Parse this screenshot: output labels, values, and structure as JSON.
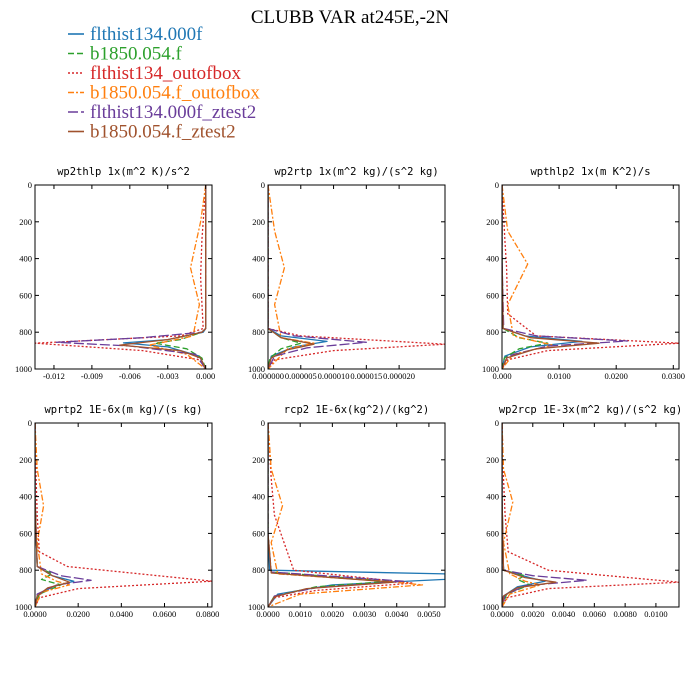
{
  "title": "CLUBB VAR at245E,-2N",
  "legend": [
    {
      "label": "flthist134.000f",
      "color": "#1f77b4",
      "dash": "solid"
    },
    {
      "label": "b1850.054.f",
      "color": "#2ca02c",
      "dash": "dashed"
    },
    {
      "label": "flthist134_outofbox",
      "color": "#d62728",
      "dash": "dotted"
    },
    {
      "label": "b1850.054.f_outofbox",
      "color": "#ff7f0e",
      "dash": "dashdot"
    },
    {
      "label": "flthist134.000f_ztest2",
      "color": "#6a3d9a",
      "dash": "longdash"
    },
    {
      "label": "b1850.054.f_ztest2",
      "color": "#a0522d",
      "dash": "solid"
    }
  ],
  "chart_data": [
    {
      "type": "line",
      "title": "wp2thlp  1x(m^2 K)/s^2",
      "xlim": [
        -0.0135,
        0.0005
      ],
      "xticks": [
        -0.012,
        -0.009,
        -0.006,
        -0.003,
        0.0
      ],
      "xtick_labels": [
        "-0.012",
        "-0.009",
        "-0.006",
        "-0.003",
        "0.000"
      ],
      "ylim": [
        0,
        1000
      ],
      "yticks": [
        0,
        200,
        400,
        600,
        800,
        1000
      ],
      "series": [
        {
          "name": "flthist134.000f",
          "x": [
            0,
            0,
            0,
            -0.0002,
            -0.003,
            -0.0065,
            -0.003,
            -0.0005,
            0
          ],
          "y": [
            0,
            400,
            780,
            800,
            840,
            858,
            880,
            930,
            1000
          ]
        },
        {
          "name": "b1850.054.f",
          "x": [
            0,
            0,
            0,
            -0.0003,
            -0.002,
            -0.004,
            -0.0015,
            -0.0003,
            0
          ],
          "y": [
            0,
            400,
            780,
            800,
            840,
            860,
            890,
            940,
            1000
          ]
        },
        {
          "name": "flthist134_outofbox",
          "x": [
            0,
            -0.0003,
            -0.0004,
            -0.0002,
            -0.002,
            -0.0135,
            -0.005,
            -0.0005,
            0
          ],
          "y": [
            0,
            300,
            500,
            780,
            820,
            860,
            900,
            950,
            1000
          ]
        },
        {
          "name": "b1850.054.f_outofbox",
          "x": [
            0,
            -0.0004,
            -0.0012,
            -0.0005,
            -0.001,
            -0.003,
            -0.0045,
            -0.0015,
            0
          ],
          "y": [
            0,
            200,
            450,
            650,
            820,
            850,
            870,
            920,
            1000
          ]
        },
        {
          "name": "flthist134.000f_ztest2",
          "x": [
            0,
            0,
            0,
            -0.0003,
            -0.005,
            -0.0118,
            -0.006,
            -0.0008,
            0
          ],
          "y": [
            0,
            400,
            780,
            800,
            830,
            855,
            875,
            920,
            1000
          ]
        },
        {
          "name": "b1850.054.f_ztest2",
          "x": [
            0,
            0,
            0,
            -0.0003,
            -0.003,
            -0.0068,
            -0.002,
            -0.0004,
            0
          ],
          "y": [
            0,
            400,
            780,
            800,
            840,
            870,
            900,
            940,
            1000
          ]
        }
      ]
    },
    {
      "type": "line",
      "title": "wp2rtp  1x(m^2 kg)/(s^2 kg)",
      "xlim": [
        0,
        2.7e-05
      ],
      "xticks": [
        0,
        5e-06,
        1e-05,
        1.5e-05,
        2e-05
      ],
      "xtick_labels": [
        "0.000000",
        "0.000005",
        "0.000010",
        "0.000015",
        "0.000020"
      ],
      "ylim": [
        0,
        1000
      ],
      "yticks": [
        0,
        200,
        400,
        600,
        800,
        1000
      ],
      "series": [
        {
          "name": "flthist134.000f",
          "x": [
            0,
            0,
            0,
            2e-06,
            9e-06,
            4e-06,
            5e-07,
            0
          ],
          "y": [
            0,
            400,
            780,
            820,
            850,
            880,
            930,
            1000
          ]
        },
        {
          "name": "b1850.054.f",
          "x": [
            0,
            0,
            0,
            2e-06,
            5e-06,
            2e-06,
            3e-07,
            0
          ],
          "y": [
            0,
            400,
            780,
            830,
            860,
            890,
            940,
            1000
          ]
        },
        {
          "name": "flthist134_outofbox",
          "x": [
            0,
            0,
            0,
            5e-06,
            2.7e-05,
            1e-05,
            1e-06,
            0
          ],
          "y": [
            0,
            400,
            780,
            820,
            865,
            900,
            950,
            1000
          ]
        },
        {
          "name": "b1850.054.f_outofbox",
          "x": [
            0,
            1e-06,
            2.5e-06,
            1e-06,
            2e-06,
            7e-06,
            3e-06,
            0
          ],
          "y": [
            0,
            250,
            450,
            650,
            830,
            860,
            890,
            1000
          ]
        },
        {
          "name": "flthist134.000f_ztest2",
          "x": [
            0,
            0,
            0,
            4e-06,
            1.5e-05,
            6e-06,
            1e-06,
            0
          ],
          "y": [
            0,
            400,
            780,
            820,
            855,
            885,
            930,
            1000
          ]
        },
        {
          "name": "b1850.054.f_ztest2",
          "x": [
            0,
            0,
            0,
            2e-06,
            7e-06,
            3e-06,
            5e-07,
            0
          ],
          "y": [
            0,
            400,
            780,
            830,
            865,
            895,
            940,
            1000
          ]
        }
      ]
    },
    {
      "type": "line",
      "title": "wpthlp2  1x(m K^2)/s",
      "xlim": [
        0,
        0.031
      ],
      "xticks": [
        0,
        0.01,
        0.02,
        0.03
      ],
      "xtick_labels": [
        "0.000",
        "0.0100",
        "0.0200",
        "0.0300"
      ],
      "ylim": [
        0,
        1000
      ],
      "yticks": [
        0,
        200,
        400,
        600,
        800,
        1000
      ],
      "series": [
        {
          "name": "flthist134.000f",
          "x": [
            0,
            0,
            0.0002,
            0.004,
            0.014,
            0.005,
            0.0005,
            0
          ],
          "y": [
            0,
            400,
            780,
            820,
            850,
            880,
            930,
            1000
          ]
        },
        {
          "name": "b1850.054.f",
          "x": [
            0,
            0,
            0.0002,
            0.003,
            0.008,
            0.003,
            0.0004,
            0
          ],
          "y": [
            0,
            400,
            780,
            830,
            860,
            890,
            940,
            1000
          ]
        },
        {
          "name": "flthist134_outofbox",
          "x": [
            0,
            0.0005,
            0.0008,
            0.001,
            0.006,
            0.031,
            0.008,
            0.001,
            0
          ],
          "y": [
            0,
            300,
            450,
            700,
            820,
            860,
            900,
            950,
            1000
          ]
        },
        {
          "name": "b1850.054.f_outofbox",
          "x": [
            0,
            0.001,
            0.0045,
            0.001,
            0.002,
            0.006,
            0.009,
            0.002,
            0
          ],
          "y": [
            0,
            250,
            430,
            650,
            820,
            850,
            870,
            920,
            1000
          ]
        },
        {
          "name": "flthist134.000f_ztest2",
          "x": [
            0,
            0,
            0.0003,
            0.006,
            0.022,
            0.008,
            0.001,
            0
          ],
          "y": [
            0,
            400,
            780,
            820,
            848,
            875,
            930,
            1000
          ]
        },
        {
          "name": "b1850.054.f_ztest2",
          "x": [
            0,
            0,
            0.0002,
            0.005,
            0.017,
            0.006,
            0.0008,
            0
          ],
          "y": [
            0,
            400,
            780,
            830,
            860,
            890,
            940,
            1000
          ]
        }
      ]
    },
    {
      "type": "line",
      "title": "wprtp2  1E-6x(m kg)/(s kg)",
      "xlim": [
        0,
        0.082
      ],
      "xticks": [
        0,
        0.02,
        0.04,
        0.06,
        0.08
      ],
      "xtick_labels": [
        "0.0000",
        "0.0200",
        "0.0400",
        "0.0600",
        "0.0800"
      ],
      "ylim": [
        0,
        1000
      ],
      "yticks": [
        0,
        200,
        400,
        600,
        800,
        1000
      ],
      "series": [
        {
          "name": "flthist134.000f",
          "x": [
            0,
            0,
            0.001,
            0.008,
            0.018,
            0.008,
            0.001,
            0
          ],
          "y": [
            0,
            400,
            780,
            830,
            860,
            890,
            940,
            1000
          ]
        },
        {
          "name": "b1850.054.f",
          "x": [
            0,
            0,
            0.001,
            0.008,
            0.003,
            0.012,
            0.002,
            0
          ],
          "y": [
            0,
            400,
            780,
            820,
            850,
            880,
            930,
            1000
          ]
        },
        {
          "name": "flthist134_outofbox",
          "x": [
            0,
            0.0005,
            0.001,
            0.002,
            0.015,
            0.082,
            0.02,
            0.002,
            0
          ],
          "y": [
            0,
            300,
            500,
            700,
            780,
            860,
            900,
            950,
            1000
          ]
        },
        {
          "name": "b1850.054.f_outofbox",
          "x": [
            0,
            0.001,
            0.004,
            0.001,
            0.003,
            0.01,
            0.016,
            0.003,
            0
          ],
          "y": [
            0,
            250,
            450,
            650,
            820,
            860,
            880,
            920,
            1000
          ]
        },
        {
          "name": "flthist134.000f_ztest2",
          "x": [
            0,
            0,
            0.001,
            0.012,
            0.026,
            0.01,
            0.001,
            0
          ],
          "y": [
            0,
            400,
            780,
            830,
            855,
            880,
            930,
            1000
          ]
        },
        {
          "name": "b1850.054.f_ztest2",
          "x": [
            0,
            0,
            0.001,
            0.008,
            0.016,
            0.006,
            0.001,
            0
          ],
          "y": [
            0,
            400,
            780,
            830,
            865,
            895,
            940,
            1000
          ]
        }
      ]
    },
    {
      "type": "line",
      "title": "rcp2  1E-6x(kg^2)/(kg^2)",
      "xlim": [
        0,
        0.0055
      ],
      "xticks": [
        0,
        0.001,
        0.002,
        0.003,
        0.004,
        0.005
      ],
      "xtick_labels": [
        "0.0000",
        "0.0010",
        "0.0020",
        "0.0030",
        "0.0040",
        "0.0050"
      ],
      "ylim": [
        0,
        1000
      ],
      "yticks": [
        0,
        200,
        400,
        600,
        800,
        1000
      ],
      "series": [
        {
          "name": "flthist134.000f",
          "x": [
            0,
            0,
            5e-05,
            0.0055,
            0.0055,
            0.002,
            0.0003,
            0
          ],
          "y": [
            0,
            600,
            800,
            820,
            850,
            880,
            930,
            1000
          ]
        },
        {
          "name": "b1850.054.f",
          "x": [
            0,
            0,
            0.0001,
            0.0038,
            0.0015,
            0.0002,
            0
          ],
          "y": [
            0,
            600,
            810,
            860,
            890,
            940,
            1000
          ]
        },
        {
          "name": "flthist134_outofbox",
          "x": [
            0,
            0.0001,
            0.0002,
            0.0008,
            0.0045,
            0.0015,
            0.0002,
            0
          ],
          "y": [
            0,
            300,
            500,
            800,
            870,
            910,
            950,
            1000
          ]
        },
        {
          "name": "b1850.054.f_outofbox",
          "x": [
            0,
            0.0001,
            0.00045,
            0.0001,
            0.0003,
            0.0036,
            0.0048,
            0.001,
            0
          ],
          "y": [
            0,
            250,
            450,
            650,
            820,
            860,
            880,
            930,
            1000
          ]
        },
        {
          "name": "flthist134.000f_ztest2",
          "x": [
            0,
            0,
            0.0001,
            0.0042,
            0.0015,
            0.0002,
            0
          ],
          "y": [
            0,
            600,
            810,
            860,
            895,
            940,
            1000
          ]
        },
        {
          "name": "b1850.054.f_ztest2",
          "x": [
            0,
            0,
            0.0001,
            0.0039,
            0.0012,
            0.0002,
            0
          ],
          "y": [
            0,
            600,
            815,
            865,
            900,
            945,
            1000
          ]
        }
      ]
    },
    {
      "type": "line",
      "title": "wp2rcp  1E-3x(m^2 kg)/(s^2 kg)",
      "xlim": [
        0,
        0.0115
      ],
      "xticks": [
        0,
        0.002,
        0.004,
        0.006,
        0.008,
        0.01
      ],
      "xtick_labels": [
        "0.0000",
        "0.0020",
        "0.0040",
        "0.0060",
        "0.0080",
        "0.0100"
      ],
      "ylim": [
        0,
        1000
      ],
      "yticks": [
        0,
        200,
        400,
        600,
        800,
        1000
      ],
      "series": [
        {
          "name": "flthist134.000f",
          "x": [
            0,
            0,
            0.0001,
            0.0018,
            0.0028,
            0.001,
            0.0001,
            0
          ],
          "y": [
            0,
            400,
            800,
            840,
            860,
            890,
            940,
            1000
          ]
        },
        {
          "name": "b1850.054.f",
          "x": [
            0,
            0,
            0.0001,
            0.0015,
            0.001,
            0.0018,
            0.0003,
            0
          ],
          "y": [
            0,
            400,
            800,
            830,
            850,
            880,
            930,
            1000
          ]
        },
        {
          "name": "flthist134_outofbox",
          "x": [
            0,
            0.0001,
            0.0002,
            0.0004,
            0.003,
            0.0115,
            0.003,
            0.0003,
            0
          ],
          "y": [
            0,
            300,
            500,
            700,
            800,
            865,
            900,
            950,
            1000
          ]
        },
        {
          "name": "b1850.054.f_outofbox",
          "x": [
            0,
            0.0001,
            0.0007,
            0.0001,
            0.0005,
            0.0015,
            0.0025,
            0.0005,
            0
          ],
          "y": [
            0,
            250,
            430,
            650,
            820,
            860,
            880,
            930,
            1000
          ]
        },
        {
          "name": "flthist134.000f_ztest2",
          "x": [
            0,
            0,
            0.0001,
            0.002,
            0.0055,
            0.0015,
            0.0002,
            0
          ],
          "y": [
            0,
            400,
            800,
            830,
            855,
            885,
            935,
            1000
          ]
        },
        {
          "name": "b1850.054.f_ztest2",
          "x": [
            0,
            0,
            0.0001,
            0.0015,
            0.0035,
            0.001,
            0.0001,
            0
          ],
          "y": [
            0,
            400,
            800,
            840,
            865,
            895,
            940,
            1000
          ]
        }
      ]
    }
  ]
}
